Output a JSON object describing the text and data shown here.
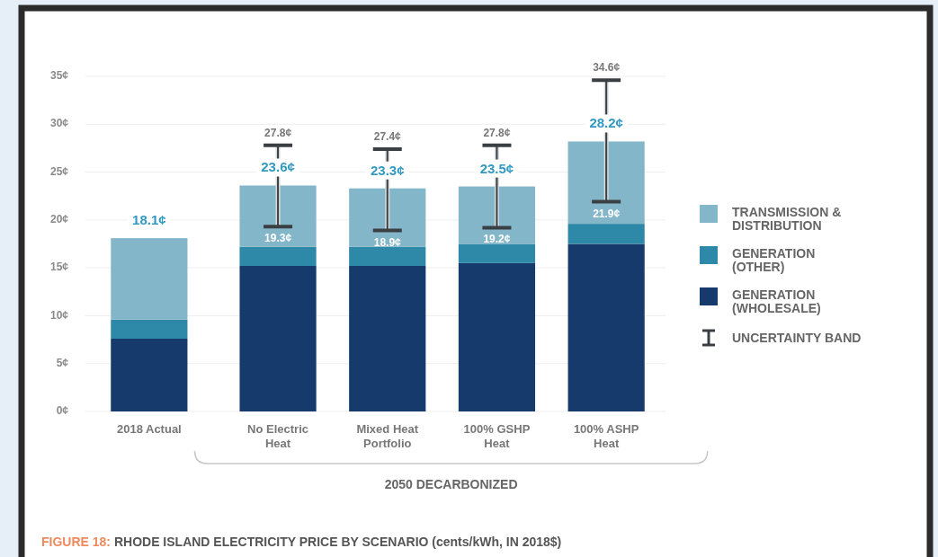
{
  "chart_data": {
    "type": "bar",
    "stacked": true,
    "title": "FIGURE 18: RHODE ISLAND ELECTRICITY PRICE BY SCENARIO (cents/kWh, IN 2018$)",
    "categories": [
      "2018 Actual",
      "No Electric Heat",
      "Mixed Heat Portfolio",
      "100% GSHP Heat",
      "100% ASHP Heat"
    ],
    "series": [
      {
        "name": "GENERATION (WHOLESALE)",
        "color": "#163a6b",
        "values": [
          7.6,
          15.2,
          15.2,
          15.5,
          17.5
        ]
      },
      {
        "name": "GENERATION (OTHER)",
        "color": "#2e88a8",
        "values": [
          2.0,
          2.0,
          2.0,
          2.0,
          2.1
        ]
      },
      {
        "name": "TRANSMISSION & DISTRIBUTION",
        "color": "#84b6c9",
        "values": [
          8.5,
          6.4,
          6.1,
          6.0,
          8.6
        ],
        "errors": [
          null,
          [
            19.3,
            27.8
          ],
          [
            18.9,
            27.4
          ],
          [
            19.2,
            27.8
          ],
          [
            21.9,
            34.6
          ]
        ]
      }
    ],
    "totals": [
      "18.1¢",
      "23.6¢",
      "23.3¢",
      "23.5¢",
      "28.2¢"
    ],
    "ylim": [
      0,
      35
    ],
    "yticks": [
      {
        "value": 0,
        "label": "0¢"
      },
      {
        "value": 5,
        "label": "5¢"
      },
      {
        "value": 10,
        "label": "10¢"
      },
      {
        "value": 15,
        "label": "15¢"
      },
      {
        "value": 20,
        "label": "20¢"
      },
      {
        "value": 25,
        "label": "25¢"
      },
      {
        "value": 30,
        "label": "30¢"
      },
      {
        "value": 35,
        "label": "35¢"
      }
    ],
    "grid": "y",
    "legend": "right",
    "annotations": [
      "2050 DECARBONIZED",
      "UNCERTAINTY BAND",
      {
        "text": "27.8¢",
        "x": "No Electric Heat",
        "y": 27.8
      },
      {
        "text": "19.3¢",
        "x": "No Electric Heat",
        "y": 19.3
      },
      {
        "text": "27.4¢",
        "x": "Mixed Heat Portfolio",
        "y": 27.4
      },
      {
        "text": "18.9¢",
        "x": "Mixed Heat Portfolio",
        "y": 18.9
      },
      {
        "text": "27.8¢",
        "x": "100% GSHP Heat",
        "y": 27.8
      },
      {
        "text": "19.2¢",
        "x": "100% GSHP Heat",
        "y": 19.2
      },
      {
        "text": "34.6¢",
        "x": "100% ASHP Heat",
        "y": 34.6
      },
      {
        "text": "21.9¢",
        "x": "100% ASHP Heat",
        "y": 21.9
      }
    ]
  }
}
